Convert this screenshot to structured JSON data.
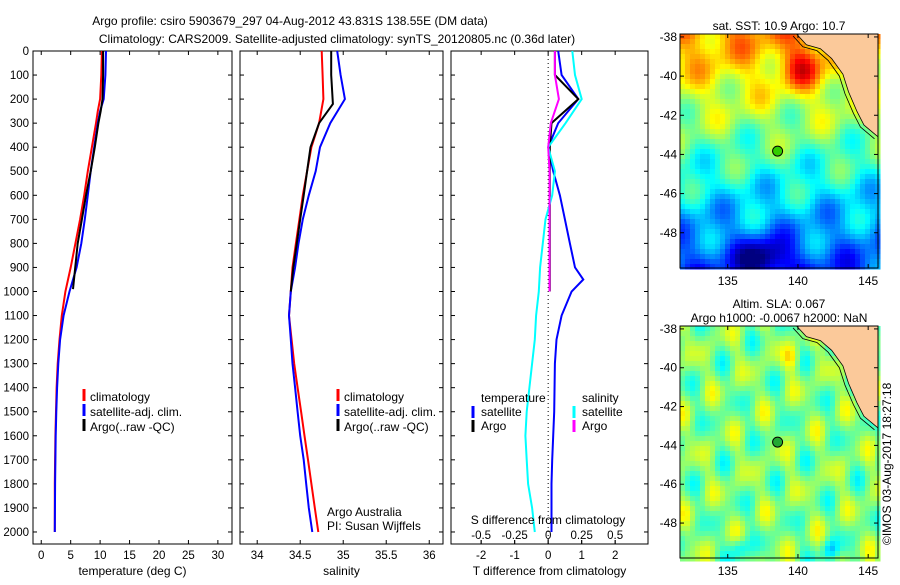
{
  "title": {
    "line1": "Argo profile: csiro 5903679_297 04-Aug-2012 43.831S 138.55E (DM data)",
    "line2": "Climatology: CARS2009. Satellite-adjusted climatology: synTS_20120805.nc (0.36d later)"
  },
  "colors": {
    "climatology": "#ff0000",
    "satellite": "#0000ff",
    "argo": "#000000",
    "sal_satellite": "#00ffff",
    "sal_argo": "#ff00ff",
    "land": "#fbc99a"
  },
  "chart_data": [
    {
      "type": "line",
      "id": "temperature",
      "xlabel": "temperature (deg C)",
      "ylabel": "",
      "xlim": [
        -1.4,
        32.4
      ],
      "ylim": [
        2050,
        0
      ],
      "xticks": [
        0,
        5,
        10,
        15,
        20,
        25,
        30
      ],
      "yticks": [
        0,
        100,
        200,
        300,
        400,
        500,
        600,
        700,
        800,
        900,
        1000,
        1100,
        1200,
        1300,
        1400,
        1500,
        1600,
        1700,
        1800,
        1900,
        2000
      ],
      "legend": [
        "climatology",
        "satellite-adj. clim.",
        "Argo(..raw -QC)"
      ],
      "series": [
        {
          "name": "climatology",
          "color": "#ff0000",
          "x": [
            10.3,
            10.2,
            10.0,
            9.6,
            9.3,
            8.6,
            7.9,
            7.3,
            6.6,
            5.8,
            5.0,
            4.1,
            3.5,
            3.1,
            2.8,
            2.6,
            2.5,
            2.4,
            2.35,
            2.3,
            2.3
          ],
          "y": [
            0,
            100,
            200,
            250,
            300,
            400,
            500,
            600,
            700,
            800,
            900,
            1000,
            1100,
            1200,
            1300,
            1400,
            1500,
            1600,
            1700,
            1800,
            2000
          ]
        },
        {
          "name": "satellite-adj. clim.",
          "color": "#0000ff",
          "x": [
            11.0,
            10.9,
            10.6,
            10.0,
            9.6,
            9.0,
            8.4,
            7.9,
            7.4,
            6.8,
            6.0,
            4.8,
            3.8,
            3.2,
            2.9,
            2.7,
            2.55,
            2.45,
            2.4,
            2.35,
            2.3
          ],
          "y": [
            0,
            100,
            200,
            250,
            300,
            400,
            500,
            600,
            700,
            800,
            900,
            1000,
            1100,
            1200,
            1300,
            1400,
            1500,
            1600,
            1700,
            1800,
            2000
          ]
        },
        {
          "name": "Argo(..raw -QC)",
          "color": "#000000",
          "x": [
            10.5,
            10.5,
            10.4,
            10.1,
            9.7,
            9.1,
            8.4,
            7.6,
            6.9,
            6.2,
            5.4
          ],
          "y": [
            0,
            100,
            200,
            250,
            300,
            400,
            500,
            600,
            700,
            800,
            990
          ]
        }
      ]
    },
    {
      "type": "line",
      "id": "salinity",
      "xlabel": "salinity",
      "xlim": [
        33.8,
        36.16
      ],
      "ylim": [
        2050,
        0
      ],
      "xticks": [
        34,
        34.5,
        35,
        35.5,
        36
      ],
      "legend": [
        "climatology",
        "satellite-adj. clim.",
        "Argo(..raw -QC)"
      ],
      "annotation": [
        "Argo Australia",
        "PI: Susan Wijffels"
      ],
      "series": [
        {
          "name": "climatology",
          "color": "#ff0000",
          "x": [
            34.75,
            34.76,
            34.77,
            34.72,
            34.63,
            34.58,
            34.53,
            34.49,
            34.45,
            34.41,
            34.39,
            34.37,
            34.4,
            34.43,
            34.47,
            34.51,
            34.55,
            34.59,
            34.63,
            34.67,
            34.71
          ],
          "y": [
            0,
            100,
            200,
            300,
            400,
            500,
            600,
            700,
            800,
            900,
            1000,
            1100,
            1200,
            1300,
            1400,
            1500,
            1600,
            1700,
            1800,
            1900,
            2000
          ]
        },
        {
          "name": "satellite-adj. clim.",
          "color": "#0000ff",
          "x": [
            34.93,
            34.97,
            35.02,
            34.85,
            34.73,
            34.68,
            34.6,
            34.53,
            34.48,
            34.44,
            34.39,
            34.37,
            34.39,
            34.41,
            34.44,
            34.47,
            34.5,
            34.54,
            34.57,
            34.6,
            34.64
          ],
          "y": [
            0,
            100,
            200,
            300,
            400,
            500,
            600,
            700,
            800,
            900,
            1000,
            1100,
            1200,
            1300,
            1400,
            1500,
            1600,
            1700,
            1800,
            1900,
            2000
          ]
        },
        {
          "name": "Argo(..raw -QC)",
          "color": "#000000",
          "x": [
            34.86,
            34.86,
            34.88,
            34.72,
            34.62,
            34.58,
            34.54,
            34.5,
            34.46,
            34.42,
            34.39
          ],
          "y": [
            0,
            100,
            220,
            300,
            400,
            500,
            600,
            700,
            800,
            900,
            1000
          ]
        }
      ]
    },
    {
      "type": "line",
      "id": "difference",
      "xlabel": "T difference from climatology",
      "x2label": "S difference from climatology",
      "xlim": [
        -2.9,
        2.98
      ],
      "ylim": [
        2050,
        0
      ],
      "xticks": [
        -2,
        -1,
        0,
        1,
        2
      ],
      "x2ticks": [
        -0.5,
        -0.25,
        0,
        0.25,
        0.5
      ],
      "x2ticklabels": [
        "-0.5",
        "-0.25",
        "0",
        "0.25",
        "0.5"
      ],
      "legend": {
        "temperature_title": "temperature",
        "salinity_title": "salinity",
        "items": [
          "satellite",
          "Argo",
          "satellite",
          "Argo"
        ]
      },
      "series": [
        {
          "name": "temperature satellite",
          "color": "#0000ff",
          "axis": "T",
          "x": [
            0.3,
            0.4,
            0.9,
            0.3,
            0.0,
            0.15,
            0.35,
            0.5,
            0.65,
            0.8,
            1.05,
            0.7,
            0.4,
            0.25,
            0.2,
            0.18,
            0.15,
            0.12,
            0.1,
            0.1,
            0.1
          ],
          "y": [
            0,
            100,
            200,
            300,
            400,
            500,
            600,
            700,
            800,
            900,
            950,
            1000,
            1100,
            1200,
            1300,
            1500,
            1600,
            1700,
            1800,
            1900,
            2000
          ]
        },
        {
          "name": "temperature Argo",
          "color": "#000000",
          "axis": "T",
          "x": [
            0.2,
            0.2,
            0.9,
            0.1,
            0.05,
            0.05,
            0.05,
            0.05,
            0.05,
            0.05,
            0.05
          ],
          "y": [
            0,
            100,
            200,
            300,
            400,
            500,
            600,
            700,
            800,
            900,
            1000
          ]
        },
        {
          "name": "salinity satellite",
          "color": "#00ffff",
          "axis": "S",
          "x": [
            0.18,
            0.2,
            0.25,
            0.13,
            0.0,
            0.05,
            0.03,
            -0.02,
            -0.04,
            -0.06,
            -0.07,
            -0.09,
            -0.1,
            -0.12,
            -0.14,
            -0.16,
            -0.17,
            -0.16,
            -0.15,
            -0.12,
            -0.1
          ],
          "y": [
            0,
            100,
            200,
            300,
            400,
            500,
            600,
            700,
            800,
            900,
            1000,
            1100,
            1200,
            1300,
            1400,
            1500,
            1600,
            1700,
            1800,
            1900,
            2000
          ]
        },
        {
          "name": "salinity Argo",
          "color": "#ff00ff",
          "axis": "S",
          "x": [
            0.05,
            0.05,
            0.08,
            0.02,
            0.0,
            0.01,
            0.01,
            0.01,
            0.01,
            0.01,
            0.01
          ],
          "y": [
            0,
            100,
            200,
            300,
            400,
            500,
            600,
            700,
            800,
            900,
            1000
          ]
        }
      ]
    }
  ],
  "maps": [
    {
      "id": "sst",
      "title": [
        "sat. SST: 10.9 Argo: 10.7"
      ],
      "lat_ticks": [
        "-38",
        "-40",
        "-42",
        "-44",
        "-46",
        "-48"
      ],
      "lon_ticks": [
        "135",
        "140",
        "145"
      ],
      "float_lon": 138.55,
      "float_lat": -43.83
    },
    {
      "id": "sla",
      "title": [
        "Altim. SLA: 0.067",
        "Argo h1000: -0.0067 h2000: NaN"
      ],
      "lat_ticks": [
        "-38",
        "-40",
        "-42",
        "-44",
        "-46",
        "-48"
      ],
      "lon_ticks": [
        "135",
        "140",
        "145"
      ],
      "float_lon": 138.55,
      "float_lat": -43.83
    }
  ],
  "credit": "©IMOS 03-Aug-2017 18:27:18"
}
